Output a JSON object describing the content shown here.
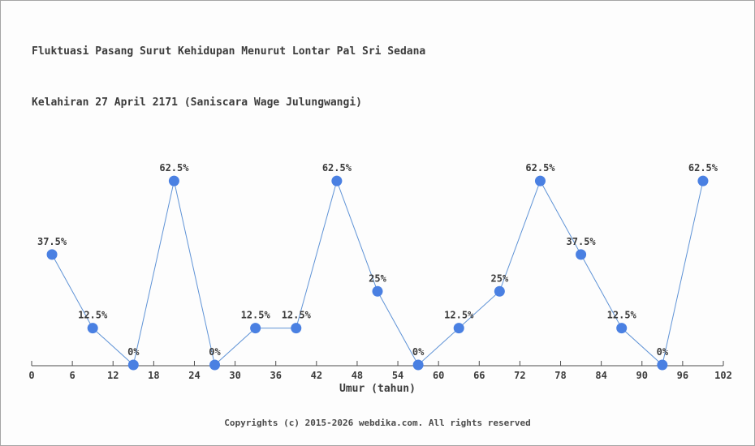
{
  "title": {
    "line1": "Fluktuasi Pasang Surut Kehidupan Menurut Lontar Pal Sri Sedana",
    "line2": "Kelahiran 27 April 2171 (Saniscara Wage Julungwangi)"
  },
  "footer": "Copyrights (c) 2015-2026 webdika.com. All rights reserved",
  "chart_data": {
    "type": "line",
    "title": "Fluktuasi Pasang Surut Kehidupan Menurut Lontar Pal Sri Sedana Kelahiran 27 April 2171 (Saniscara Wage Julungwangi)",
    "xlabel": "Umur (tahun)",
    "ylabel": "",
    "x": [
      3,
      9,
      15,
      21,
      27,
      33,
      39,
      45,
      51,
      57,
      63,
      69,
      75,
      81,
      87,
      93,
      99
    ],
    "values": [
      37.5,
      12.5,
      0,
      62.5,
      0,
      12.5,
      12.5,
      62.5,
      25,
      0,
      12.5,
      25,
      62.5,
      37.5,
      12.5,
      0,
      62.5
    ],
    "point_labels": [
      "37.5%",
      "12.5%",
      "0%",
      "62.5%",
      "0%",
      "12.5%",
      "12.5%",
      "62.5%",
      "25%",
      "0%",
      "12.5%",
      "25%",
      "62.5%",
      "37.5%",
      "12.5%",
      "0%",
      "62.5%"
    ],
    "x_ticks": [
      0,
      6,
      12,
      18,
      24,
      30,
      36,
      42,
      48,
      54,
      60,
      66,
      72,
      78,
      84,
      90,
      96,
      102
    ],
    "xlim": [
      0,
      102
    ],
    "ylim": [
      0,
      100
    ],
    "grid": false,
    "legend": "none",
    "colors": {
      "line": "#5f93d6",
      "marker": "#4a80e2",
      "axis": "#4d4d4d",
      "text": "#3c3c3c",
      "footer_text": "#4a4a4a",
      "background": "#fdfdfd",
      "border": "#a5a5a5"
    }
  }
}
